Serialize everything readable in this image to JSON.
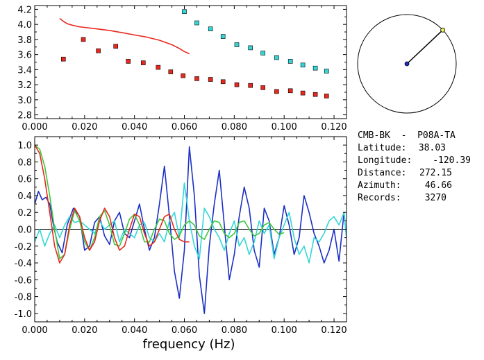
{
  "info": {
    "station": "CMB-BK  -  P08A-TA",
    "rows": [
      {
        "label": "Latitude:",
        "value": "38.03"
      },
      {
        "label": "Longitude:",
        "value": "-120.39"
      },
      {
        "label": "Distance:",
        "value": "272.15"
      },
      {
        "label": "Azimuth:",
        "value": "46.66"
      },
      {
        "label": "Records:",
        "value": "3270"
      }
    ]
  },
  "azimuth_deg": 46.66,
  "chart_data": [
    {
      "type": "scatter",
      "title": "",
      "xlabel": "",
      "ylabel": "",
      "xlim": [
        0.0,
        0.125
      ],
      "ylim": [
        2.75,
        4.25
      ],
      "xticks": [
        "0.000",
        "0.020",
        "0.040",
        "0.060",
        "0.080",
        "0.100",
        "0.120"
      ],
      "yticks": [
        "2.8",
        "3.0",
        "3.2",
        "3.4",
        "3.6",
        "3.8",
        "4.0",
        "4.2"
      ],
      "series": [
        {
          "kind": "points",
          "color": "#e8281e",
          "x": [
            0.0115,
            0.0195,
            0.0255,
            0.0325,
            0.0375,
            0.0435,
            0.0495,
            0.0545,
            0.0595,
            0.065,
            0.0705,
            0.0755,
            0.081,
            0.0865,
            0.0915,
            0.097,
            0.1025,
            0.1075,
            0.1125,
            0.117
          ],
          "y": [
            3.54,
            3.8,
            3.65,
            3.71,
            3.51,
            3.49,
            3.43,
            3.37,
            3.32,
            3.28,
            3.27,
            3.24,
            3.2,
            3.19,
            3.16,
            3.11,
            3.12,
            3.09,
            3.07,
            3.05
          ]
        },
        {
          "kind": "points",
          "color": "#33d6d6",
          "x": [
            0.06,
            0.065,
            0.0705,
            0.0755,
            0.081,
            0.0865,
            0.0915,
            0.097,
            0.1025,
            0.1075,
            0.1125,
            0.117
          ],
          "y": [
            4.17,
            4.02,
            3.94,
            3.84,
            3.73,
            3.69,
            3.62,
            3.56,
            3.51,
            3.46,
            3.42,
            3.38
          ]
        },
        {
          "kind": "line",
          "color": "#e8281e",
          "x": [
            0.01,
            0.0115,
            0.013,
            0.015,
            0.0175,
            0.02,
            0.025,
            0.03,
            0.035,
            0.04,
            0.045,
            0.05,
            0.055,
            0.058,
            0.06,
            0.062
          ],
          "y": [
            4.08,
            4.04,
            4.01,
            3.99,
            3.97,
            3.96,
            3.94,
            3.92,
            3.89,
            3.86,
            3.83,
            3.79,
            3.73,
            3.68,
            3.64,
            3.61
          ]
        }
      ]
    },
    {
      "type": "line",
      "title": "",
      "xlabel": "frequency (Hz)",
      "ylabel": "",
      "xlim": [
        0.0,
        0.125
      ],
      "ylim": [
        -1.1,
        1.1
      ],
      "xticks": [
        "0.000",
        "0.020",
        "0.040",
        "0.060",
        "0.080",
        "0.100",
        "0.120"
      ],
      "yticks": [
        "-1.0",
        "-0.8",
        "-0.6",
        "-0.4",
        "-0.2",
        "0.0",
        "0.2",
        "0.4",
        "0.6",
        "0.8",
        "1.0"
      ],
      "series": [
        {
          "color": "#1a2fc4",
          "x": [
            0.0,
            0.0015,
            0.003,
            0.0045,
            0.006,
            0.0075,
            0.009,
            0.011,
            0.013,
            0.0155,
            0.018,
            0.02,
            0.022,
            0.024,
            0.026,
            0.028,
            0.03,
            0.032,
            0.034,
            0.036,
            0.038,
            0.04,
            0.042,
            0.044,
            0.046,
            0.048,
            0.05,
            0.052,
            0.054,
            0.056,
            0.058,
            0.06,
            0.062,
            0.064,
            0.066,
            0.068,
            0.07,
            0.072,
            0.074,
            0.076,
            0.078,
            0.08,
            0.082,
            0.084,
            0.086,
            0.088,
            0.09,
            0.092,
            0.094,
            0.096,
            0.098,
            0.1,
            0.102,
            0.104,
            0.106,
            0.108,
            0.11,
            0.112,
            0.114,
            0.116,
            0.118,
            0.12,
            0.122,
            0.124,
            0.125
          ],
          "y": [
            0.3,
            0.45,
            0.35,
            0.38,
            0.3,
            0.05,
            -0.15,
            -0.28,
            0.05,
            0.25,
            0.15,
            -0.25,
            -0.2,
            0.08,
            0.15,
            -0.08,
            -0.18,
            0.1,
            0.2,
            -0.05,
            -0.1,
            0.1,
            0.3,
            0.0,
            -0.25,
            -0.1,
            0.3,
            0.75,
            0.15,
            -0.5,
            -0.82,
            -0.25,
            0.98,
            0.4,
            -0.55,
            -1.0,
            -0.2,
            0.3,
            0.7,
            0.05,
            -0.6,
            -0.3,
            0.15,
            0.5,
            0.25,
            -0.25,
            -0.45,
            0.25,
            0.1,
            -0.3,
            -0.1,
            0.28,
            0.05,
            -0.3,
            -0.1,
            0.4,
            0.2,
            -0.05,
            -0.2,
            -0.4,
            -0.25,
            0.0,
            -0.38,
            0.2,
            -0.1
          ]
        },
        {
          "color": "#33d6d6",
          "x": [
            0.0,
            0.002,
            0.004,
            0.006,
            0.008,
            0.01,
            0.012,
            0.014,
            0.016,
            0.018,
            0.02,
            0.022,
            0.024,
            0.026,
            0.028,
            0.03,
            0.032,
            0.034,
            0.036,
            0.038,
            0.04,
            0.042,
            0.044,
            0.046,
            0.048,
            0.05,
            0.052,
            0.054,
            0.056,
            0.058,
            0.06,
            0.062,
            0.064,
            0.066,
            0.068,
            0.07,
            0.072,
            0.074,
            0.076,
            0.078,
            0.08,
            0.082,
            0.084,
            0.086,
            0.088,
            0.09,
            0.092,
            0.094,
            0.096,
            0.098,
            0.1,
            0.102,
            0.104,
            0.106,
            0.108,
            0.11,
            0.112,
            0.114,
            0.116,
            0.118,
            0.12,
            0.122,
            0.124,
            0.125
          ],
          "y": [
            -0.15,
            0.0,
            -0.2,
            -0.05,
            0.05,
            -0.1,
            0.05,
            0.15,
            0.08,
            0.1,
            0.05,
            0.0,
            -0.05,
            0.1,
            0.0,
            0.05,
            0.1,
            -0.15,
            0.0,
            -0.05,
            -0.1,
            0.05,
            0.08,
            -0.1,
            -0.15,
            -0.05,
            -0.15,
            0.1,
            0.2,
            -0.1,
            0.55,
            0.1,
            -0.2,
            -0.35,
            0.25,
            0.15,
            0.0,
            -0.1,
            -0.25,
            -0.05,
            0.1,
            -0.2,
            -0.1,
            -0.3,
            -0.15,
            0.1,
            -0.05,
            0.05,
            -0.35,
            -0.1,
            0.05,
            0.2,
            -0.1,
            -0.3,
            -0.2,
            -0.4,
            -0.1,
            -0.15,
            -0.05,
            0.1,
            0.15,
            0.05,
            0.2,
            -0.1
          ]
        },
        {
          "color": "#3cc83c",
          "x": [
            0.0,
            0.002,
            0.004,
            0.006,
            0.008,
            0.01,
            0.012,
            0.014,
            0.016,
            0.018,
            0.02,
            0.022,
            0.024,
            0.026,
            0.028,
            0.03,
            0.032,
            0.034,
            0.036,
            0.038,
            0.04,
            0.042,
            0.044,
            0.046,
            0.048,
            0.05,
            0.052,
            0.054,
            0.056,
            0.058,
            0.06,
            0.062,
            0.064,
            0.066,
            0.068,
            0.07,
            0.072,
            0.074,
            0.076,
            0.078,
            0.08,
            0.082,
            0.084,
            0.086,
            0.088,
            0.09,
            0.092,
            0.094,
            0.096,
            0.098,
            0.1
          ],
          "y": [
            1.0,
            0.95,
            0.75,
            0.4,
            0.0,
            -0.35,
            -0.3,
            0.0,
            0.22,
            0.1,
            -0.15,
            -0.25,
            -0.1,
            0.15,
            0.22,
            0.05,
            -0.18,
            -0.2,
            -0.05,
            0.12,
            0.18,
            0.05,
            -0.15,
            -0.15,
            0.0,
            0.12,
            0.1,
            -0.05,
            -0.12,
            -0.08,
            0.05,
            0.1,
            0.05,
            -0.08,
            -0.12,
            0.0,
            0.1,
            0.08,
            -0.05,
            -0.1,
            -0.05,
            0.08,
            0.1,
            0.0,
            -0.08,
            -0.05,
            0.05,
            0.08,
            0.0,
            -0.06,
            -0.04
          ]
        },
        {
          "color": "#e8281e",
          "x": [
            0.0,
            0.002,
            0.004,
            0.006,
            0.008,
            0.01,
            0.012,
            0.014,
            0.016,
            0.018,
            0.02,
            0.022,
            0.024,
            0.026,
            0.028,
            0.03,
            0.032,
            0.034,
            0.036,
            0.038,
            0.04,
            0.042,
            0.044,
            0.046,
            0.048,
            0.05,
            0.052,
            0.054,
            0.056,
            0.058,
            0.06,
            0.062
          ],
          "y": [
            1.0,
            0.9,
            0.6,
            0.2,
            -0.2,
            -0.4,
            -0.3,
            0.05,
            0.25,
            0.15,
            -0.1,
            -0.25,
            -0.15,
            0.1,
            0.25,
            0.15,
            -0.1,
            -0.25,
            -0.2,
            0.0,
            0.18,
            0.15,
            -0.05,
            -0.2,
            -0.15,
            0.0,
            0.15,
            0.18,
            0.0,
            -0.12,
            -0.15,
            -0.15
          ]
        }
      ]
    }
  ]
}
